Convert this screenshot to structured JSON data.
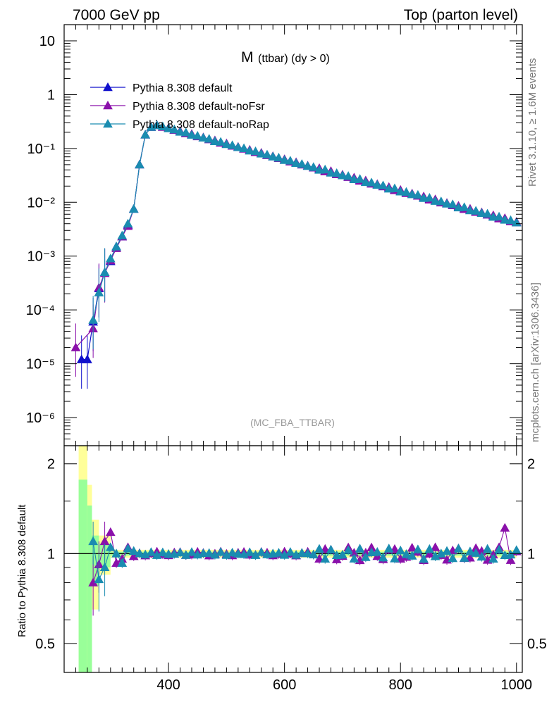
{
  "header": {
    "left": "7000 GeV pp",
    "right": "Top (parton level)"
  },
  "side_labels": {
    "rivet": "Rivet 3.1.10, ≥ 1.6M events",
    "mcplots": "mcplots.cern.ch [arXiv:1306.3436]"
  },
  "plot": {
    "title_main": "M",
    "title_sub": "(ttbar) (dy > 0)",
    "watermark": "(MC_FBA_TTBAR)",
    "ratio_ylabel": "Ratio to Pythia 8.308 default"
  },
  "colors": {
    "default": "#1010cc",
    "noFsr": "#8a10aa",
    "noRap": "#1a8cb0",
    "band_green": "#99ff99",
    "band_yellow": "#ffff99"
  },
  "chart_data": {
    "type": "line",
    "x_range": [
      220,
      1010
    ],
    "x_ticks": [
      "400",
      "600",
      "800",
      "1000"
    ],
    "main": {
      "yscale": "log",
      "ylim": [
        3e-07,
        20
      ],
      "y_ticks": [
        "10",
        "1",
        "10⁻¹",
        "10⁻²",
        "10⁻³",
        "10⁻⁴",
        "10⁻⁵",
        "10⁻⁶"
      ],
      "series": [
        {
          "name": "Pythia 8.308 default",
          "color_key": "default",
          "x": [
            250,
            260,
            270,
            280,
            290,
            300,
            310,
            320,
            330,
            340,
            350,
            360,
            370,
            380
          ],
          "y": [
            1.2e-05,
            1.2e-05,
            6e-05,
            0.00025,
            0.0005,
            0.0008,
            0.0015,
            0.0023,
            0.0038,
            0.0075,
            0.05,
            0.18,
            0.25,
            0.27
          ]
        },
        {
          "name": "Pythia 8.308 default-noFsr",
          "color_key": "noFsr",
          "x": [
            240,
            270,
            280,
            290,
            300,
            310,
            320,
            330,
            340,
            350,
            360,
            370,
            380
          ],
          "y": [
            2e-05,
            4.5e-05,
            0.00026,
            0.00048,
            0.00083,
            0.0014,
            0.0023,
            0.0036,
            0.0075,
            0.05,
            0.18,
            0.25,
            0.27
          ]
        },
        {
          "name": "Pythia 8.308 default-noRap",
          "color_key": "noRap",
          "x": [
            270,
            280,
            290,
            300,
            310,
            320,
            330,
            340,
            350,
            360,
            370,
            380
          ],
          "y": [
            6.5e-05,
            0.00021,
            0.0005,
            0.0009,
            0.0015,
            0.0024,
            0.004,
            0.0075,
            0.05,
            0.18,
            0.25,
            0.27
          ]
        }
      ],
      "tail": {
        "x_start": 380,
        "x_end": 1000,
        "y_start": 0.27,
        "y_end": 0.0042,
        "step": 10
      },
      "legend_position": "top-left"
    },
    "ratio": {
      "ylim": [
        0.4,
        2.3
      ],
      "y_ticks": [
        "2",
        "1",
        "0.5"
      ],
      "reference": 1,
      "low_mass": {
        "noFsr": {
          "x": [
            270,
            280,
            290,
            300,
            310,
            320,
            330,
            340
          ],
          "y": [
            0.8,
            0.92,
            1.1,
            1.18,
            0.93,
            0.96,
            1.05,
            0.98
          ]
        },
        "noRap": {
          "x": [
            270,
            280,
            290,
            300,
            310,
            320,
            330,
            340
          ],
          "y": [
            1.1,
            0.82,
            0.9,
            1.05,
            1.0,
            0.93,
            1.04,
            1.02
          ]
        }
      },
      "high_mass_fluctuation": {
        "noFsr": 0.05,
        "noRap": 0.04
      },
      "noFsr_spike": {
        "x": 980,
        "y": 1.22
      }
    }
  }
}
